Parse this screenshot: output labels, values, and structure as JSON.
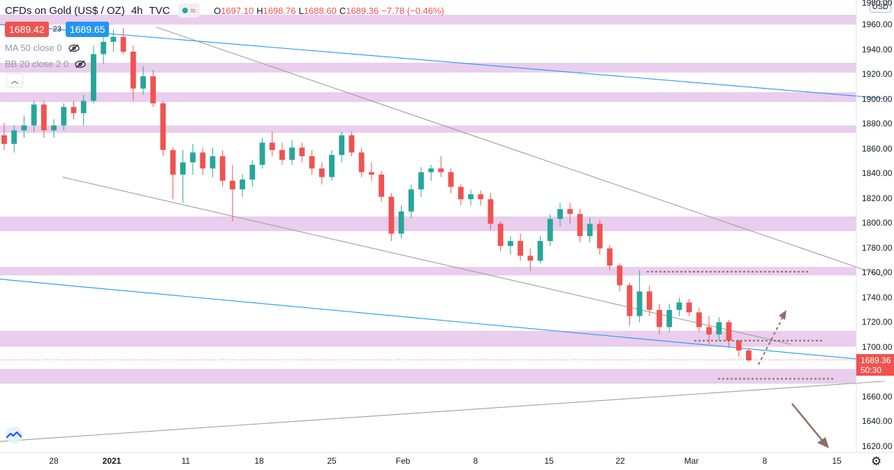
{
  "header": {
    "symbol": "CFDs on Gold (US$ / OZ)",
    "timeframe": "4h",
    "source": "TVC",
    "open_label": "O",
    "open": "1697.10",
    "high_label": "H",
    "high": "1698.76",
    "low_label": "L",
    "low": "1688.60",
    "close_label": "C",
    "close": "1689.36",
    "change": "−7.78 (−0.46%)"
  },
  "trade": {
    "bid": "1689.42",
    "spread": "23",
    "ask": "1689.65"
  },
  "indicators": [
    {
      "label": "MA 50 close 0"
    },
    {
      "label": "BB 20 close 2 0"
    }
  ],
  "price_axis": {
    "currency": "USD",
    "ticks": [
      "1980.00",
      "1960.00",
      "1940.00",
      "1920.00",
      "1900.00",
      "1880.00",
      "1860.00",
      "1840.00",
      "1820.00",
      "1800.00",
      "1780.00",
      "1760.00",
      "1740.00",
      "1720.00",
      "1700.00",
      "1660.00",
      "1640.00",
      "1620.00"
    ],
    "last_price": "1689.36",
    "countdown": "50:30"
  },
  "time_axis": {
    "ticks": [
      "28",
      "2021",
      "11",
      "18",
      "25",
      "Feb",
      "8",
      "15",
      "22",
      "Mar",
      "8",
      "15"
    ]
  },
  "colors": {
    "up": "#26a69a",
    "down": "#ef5350",
    "zone": "#e1bee7",
    "trend_blue": "#2196f3",
    "trend_gray": "#9e9e9e",
    "dashed": "#8d6e63"
  },
  "chart_data": {
    "type": "candlestick",
    "y_range": [
      1614,
      1982
    ],
    "support_resistance_zones": [
      [
        1962,
        1970
      ],
      [
        1923,
        1931
      ],
      [
        1899,
        1907
      ],
      [
        1874,
        1880
      ],
      [
        1794,
        1806
      ],
      [
        1758,
        1765
      ],
      [
        1700,
        1713
      ],
      [
        1670,
        1682
      ]
    ],
    "candles": [
      {
        "o": 1872,
        "h": 1882,
        "l": 1860,
        "c": 1865
      },
      {
        "o": 1865,
        "h": 1880,
        "l": 1858,
        "c": 1876
      },
      {
        "o": 1876,
        "h": 1888,
        "l": 1870,
        "c": 1880
      },
      {
        "o": 1880,
        "h": 1900,
        "l": 1875,
        "c": 1897
      },
      {
        "o": 1897,
        "h": 1900,
        "l": 1870,
        "c": 1876
      },
      {
        "o": 1876,
        "h": 1885,
        "l": 1870,
        "c": 1880
      },
      {
        "o": 1880,
        "h": 1898,
        "l": 1876,
        "c": 1895
      },
      {
        "o": 1895,
        "h": 1900,
        "l": 1885,
        "c": 1890
      },
      {
        "o": 1890,
        "h": 1905,
        "l": 1880,
        "c": 1900
      },
      {
        "o": 1900,
        "h": 1945,
        "l": 1898,
        "c": 1938
      },
      {
        "o": 1938,
        "h": 1952,
        "l": 1930,
        "c": 1948
      },
      {
        "o": 1948,
        "h": 1958,
        "l": 1940,
        "c": 1952
      },
      {
        "o": 1952,
        "h": 1959,
        "l": 1938,
        "c": 1940
      },
      {
        "o": 1940,
        "h": 1945,
        "l": 1900,
        "c": 1910
      },
      {
        "o": 1910,
        "h": 1928,
        "l": 1905,
        "c": 1920
      },
      {
        "o": 1920,
        "h": 1925,
        "l": 1895,
        "c": 1898
      },
      {
        "o": 1898,
        "h": 1900,
        "l": 1855,
        "c": 1860
      },
      {
        "o": 1860,
        "h": 1862,
        "l": 1820,
        "c": 1840
      },
      {
        "o": 1840,
        "h": 1860,
        "l": 1817,
        "c": 1850
      },
      {
        "o": 1850,
        "h": 1865,
        "l": 1840,
        "c": 1858
      },
      {
        "o": 1858,
        "h": 1862,
        "l": 1840,
        "c": 1845
      },
      {
        "o": 1845,
        "h": 1862,
        "l": 1838,
        "c": 1855
      },
      {
        "o": 1855,
        "h": 1860,
        "l": 1830,
        "c": 1835
      },
      {
        "o": 1835,
        "h": 1848,
        "l": 1802,
        "c": 1828
      },
      {
        "o": 1828,
        "h": 1840,
        "l": 1822,
        "c": 1836
      },
      {
        "o": 1836,
        "h": 1852,
        "l": 1830,
        "c": 1848
      },
      {
        "o": 1848,
        "h": 1870,
        "l": 1845,
        "c": 1866
      },
      {
        "o": 1866,
        "h": 1875,
        "l": 1855,
        "c": 1860
      },
      {
        "o": 1860,
        "h": 1866,
        "l": 1848,
        "c": 1852
      },
      {
        "o": 1852,
        "h": 1868,
        "l": 1848,
        "c": 1862
      },
      {
        "o": 1862,
        "h": 1866,
        "l": 1850,
        "c": 1855
      },
      {
        "o": 1855,
        "h": 1860,
        "l": 1840,
        "c": 1845
      },
      {
        "o": 1845,
        "h": 1850,
        "l": 1832,
        "c": 1838
      },
      {
        "o": 1838,
        "h": 1860,
        "l": 1835,
        "c": 1856
      },
      {
        "o": 1856,
        "h": 1875,
        "l": 1850,
        "c": 1872
      },
      {
        "o": 1872,
        "h": 1875,
        "l": 1855,
        "c": 1858
      },
      {
        "o": 1858,
        "h": 1862,
        "l": 1838,
        "c": 1842
      },
      {
        "o": 1842,
        "h": 1850,
        "l": 1835,
        "c": 1840
      },
      {
        "o": 1840,
        "h": 1843,
        "l": 1818,
        "c": 1822
      },
      {
        "o": 1822,
        "h": 1825,
        "l": 1786,
        "c": 1792
      },
      {
        "o": 1792,
        "h": 1815,
        "l": 1788,
        "c": 1810
      },
      {
        "o": 1810,
        "h": 1832,
        "l": 1805,
        "c": 1828
      },
      {
        "o": 1828,
        "h": 1846,
        "l": 1822,
        "c": 1842
      },
      {
        "o": 1842,
        "h": 1848,
        "l": 1835,
        "c": 1845
      },
      {
        "o": 1845,
        "h": 1855,
        "l": 1838,
        "c": 1842
      },
      {
        "o": 1842,
        "h": 1845,
        "l": 1825,
        "c": 1830
      },
      {
        "o": 1830,
        "h": 1832,
        "l": 1815,
        "c": 1820
      },
      {
        "o": 1820,
        "h": 1828,
        "l": 1815,
        "c": 1824
      },
      {
        "o": 1824,
        "h": 1827,
        "l": 1815,
        "c": 1820
      },
      {
        "o": 1820,
        "h": 1825,
        "l": 1795,
        "c": 1800
      },
      {
        "o": 1800,
        "h": 1802,
        "l": 1778,
        "c": 1782
      },
      {
        "o": 1782,
        "h": 1790,
        "l": 1775,
        "c": 1786
      },
      {
        "o": 1786,
        "h": 1792,
        "l": 1770,
        "c": 1774
      },
      {
        "o": 1774,
        "h": 1780,
        "l": 1762,
        "c": 1770
      },
      {
        "o": 1770,
        "h": 1790,
        "l": 1768,
        "c": 1786
      },
      {
        "o": 1786,
        "h": 1808,
        "l": 1782,
        "c": 1804
      },
      {
        "o": 1804,
        "h": 1817,
        "l": 1798,
        "c": 1812
      },
      {
        "o": 1812,
        "h": 1817,
        "l": 1800,
        "c": 1808
      },
      {
        "o": 1808,
        "h": 1812,
        "l": 1785,
        "c": 1790
      },
      {
        "o": 1790,
        "h": 1805,
        "l": 1785,
        "c": 1800
      },
      {
        "o": 1800,
        "h": 1803,
        "l": 1775,
        "c": 1780
      },
      {
        "o": 1780,
        "h": 1783,
        "l": 1762,
        "c": 1766
      },
      {
        "o": 1766,
        "h": 1768,
        "l": 1745,
        "c": 1750
      },
      {
        "o": 1750,
        "h": 1752,
        "l": 1717,
        "c": 1725
      },
      {
        "o": 1725,
        "h": 1762,
        "l": 1720,
        "c": 1745
      },
      {
        "o": 1745,
        "h": 1750,
        "l": 1725,
        "c": 1730
      },
      {
        "o": 1730,
        "h": 1735,
        "l": 1710,
        "c": 1716
      },
      {
        "o": 1716,
        "h": 1735,
        "l": 1712,
        "c": 1730
      },
      {
        "o": 1730,
        "h": 1740,
        "l": 1725,
        "c": 1736
      },
      {
        "o": 1736,
        "h": 1739,
        "l": 1725,
        "c": 1728
      },
      {
        "o": 1728,
        "h": 1732,
        "l": 1712,
        "c": 1716
      },
      {
        "o": 1716,
        "h": 1725,
        "l": 1702,
        "c": 1710
      },
      {
        "o": 1710,
        "h": 1724,
        "l": 1705,
        "c": 1720
      },
      {
        "o": 1720,
        "h": 1722,
        "l": 1700,
        "c": 1705
      },
      {
        "o": 1705,
        "h": 1706,
        "l": 1692,
        "c": 1697
      },
      {
        "o": 1697,
        "h": 1699,
        "l": 1688,
        "c": 1689
      }
    ],
    "trendlines": [
      {
        "color": "blue",
        "from": [
          "2020-12-20",
          1962
        ],
        "to": [
          "2021-03-15",
          1902
        ]
      },
      {
        "color": "blue",
        "from": [
          "2020-12-20",
          1755
        ],
        "to": [
          "2021-03-15",
          1688
        ]
      },
      {
        "color": "gray",
        "from": [
          "2021-01-04",
          1960
        ],
        "to": [
          "2021-03-15",
          1757
        ]
      },
      {
        "color": "gray",
        "from": [
          "2020-12-26",
          1838
        ],
        "to": [
          "2021-03-06",
          1702
        ]
      },
      {
        "color": "gray",
        "from": [
          "2020-12-20",
          1623
        ],
        "to": [
          "2021-03-15",
          1672
        ]
      }
    ],
    "horizontal_dashed_levels": [
      1761,
      1705,
      1674
    ]
  }
}
